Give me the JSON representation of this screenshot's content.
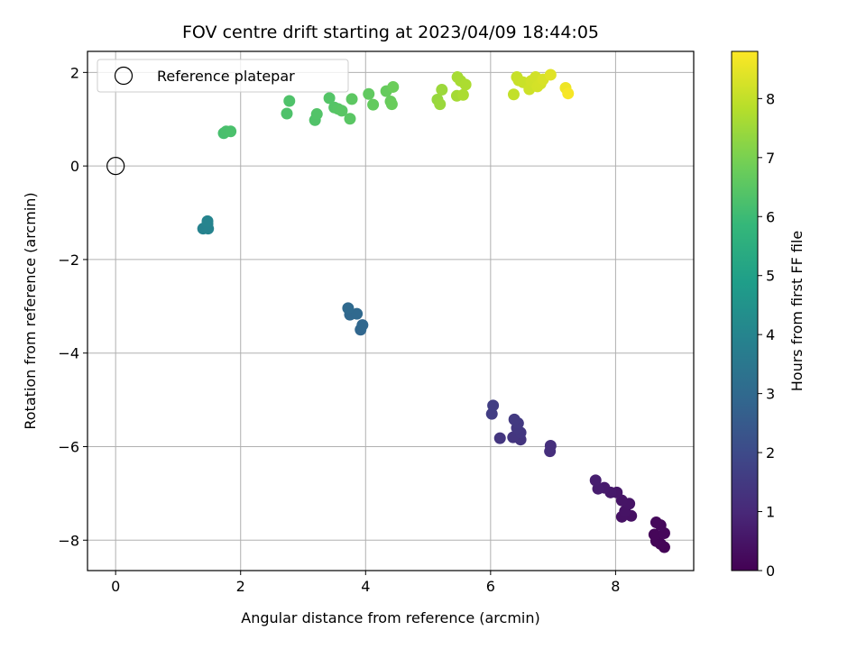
{
  "chart_data": {
    "type": "scatter",
    "title": "FOV centre drift starting at 2023/04/09 18:44:05",
    "xlabel": "Angular distance from reference (arcmin)",
    "ylabel": "Rotation from reference (arcmin)",
    "xlim": [
      -0.45,
      9.25
    ],
    "ylim": [
      -8.65,
      2.45
    ],
    "xticks": [
      0,
      2,
      4,
      6,
      8
    ],
    "yticks": [
      -8,
      -6,
      -4,
      -2,
      0,
      2
    ],
    "grid": true,
    "legend": {
      "position": "top-left",
      "entries": [
        "Reference platepar"
      ]
    },
    "reference_point": {
      "x": 0,
      "y": 0,
      "marker": "open-circle"
    },
    "colorbar": {
      "label": "Hours from first FF file",
      "min": 0,
      "max": 8.8,
      "ticks": [
        0,
        1,
        2,
        3,
        4,
        5,
        6,
        7,
        8
      ],
      "colormap": "viridis",
      "colormap_stops": [
        "#440154",
        "#482878",
        "#3e4989",
        "#31688e",
        "#26828e",
        "#1f9e89",
        "#35b779",
        "#6ece58",
        "#b5de2b",
        "#fde725"
      ]
    },
    "points": [
      {
        "x": 8.78,
        "y": -8.15,
        "t": 0.05
      },
      {
        "x": 8.72,
        "y": -8.08,
        "t": 0.08
      },
      {
        "x": 8.65,
        "y": -8.02,
        "t": 0.1
      },
      {
        "x": 8.62,
        "y": -7.88,
        "t": 0.13
      },
      {
        "x": 8.78,
        "y": -7.85,
        "t": 0.15
      },
      {
        "x": 8.72,
        "y": -7.68,
        "t": 0.18
      },
      {
        "x": 8.65,
        "y": -7.62,
        "t": 0.2
      },
      {
        "x": 8.25,
        "y": -7.48,
        "t": 0.4
      },
      {
        "x": 8.1,
        "y": -7.5,
        "t": 0.43
      },
      {
        "x": 8.15,
        "y": -7.38,
        "t": 0.45
      },
      {
        "x": 8.22,
        "y": -7.22,
        "t": 0.48
      },
      {
        "x": 8.1,
        "y": -7.15,
        "t": 0.5
      },
      {
        "x": 8.02,
        "y": -6.98,
        "t": 0.55
      },
      {
        "x": 7.92,
        "y": -6.98,
        "t": 0.6
      },
      {
        "x": 7.82,
        "y": -6.88,
        "t": 0.65
      },
      {
        "x": 7.72,
        "y": -6.9,
        "t": 0.7
      },
      {
        "x": 7.68,
        "y": -6.72,
        "t": 0.72
      },
      {
        "x": 6.95,
        "y": -6.1,
        "t": 1.2
      },
      {
        "x": 6.96,
        "y": -5.98,
        "t": 1.22
      },
      {
        "x": 6.48,
        "y": -5.85,
        "t": 1.35
      },
      {
        "x": 6.36,
        "y": -5.8,
        "t": 1.38
      },
      {
        "x": 6.15,
        "y": -5.82,
        "t": 1.4
      },
      {
        "x": 6.48,
        "y": -5.7,
        "t": 1.42
      },
      {
        "x": 6.42,
        "y": -5.6,
        "t": 1.45
      },
      {
        "x": 6.44,
        "y": -5.5,
        "t": 1.48
      },
      {
        "x": 6.38,
        "y": -5.42,
        "t": 1.5
      },
      {
        "x": 6.02,
        "y": -5.3,
        "t": 1.6
      },
      {
        "x": 6.04,
        "y": -5.12,
        "t": 1.62
      },
      {
        "x": 3.92,
        "y": -3.5,
        "t": 2.9
      },
      {
        "x": 3.95,
        "y": -3.4,
        "t": 2.93
      },
      {
        "x": 3.75,
        "y": -3.18,
        "t": 2.95
      },
      {
        "x": 3.86,
        "y": -3.16,
        "t": 2.98
      },
      {
        "x": 3.72,
        "y": -3.04,
        "t": 3.0
      },
      {
        "x": 1.4,
        "y": -1.34,
        "t": 3.9
      },
      {
        "x": 1.48,
        "y": -1.34,
        "t": 3.93
      },
      {
        "x": 1.47,
        "y": -1.24,
        "t": 3.95
      },
      {
        "x": 1.47,
        "y": -1.18,
        "t": 3.98
      },
      {
        "x": 1.73,
        "y": 0.7,
        "t": 6.2
      },
      {
        "x": 1.77,
        "y": 0.74,
        "t": 6.22
      },
      {
        "x": 1.84,
        "y": 0.74,
        "t": 6.25
      },
      {
        "x": 2.74,
        "y": 1.12,
        "t": 6.3
      },
      {
        "x": 2.78,
        "y": 1.39,
        "t": 6.32
      },
      {
        "x": 3.19,
        "y": 0.98,
        "t": 6.35
      },
      {
        "x": 3.22,
        "y": 1.11,
        "t": 6.38
      },
      {
        "x": 3.42,
        "y": 1.45,
        "t": 6.4
      },
      {
        "x": 3.5,
        "y": 1.25,
        "t": 6.42
      },
      {
        "x": 3.56,
        "y": 1.22,
        "t": 6.45
      },
      {
        "x": 3.62,
        "y": 1.18,
        "t": 6.48
      },
      {
        "x": 3.75,
        "y": 1.01,
        "t": 6.5
      },
      {
        "x": 3.78,
        "y": 1.43,
        "t": 6.55
      },
      {
        "x": 4.05,
        "y": 1.54,
        "t": 6.62
      },
      {
        "x": 4.12,
        "y": 1.31,
        "t": 6.66
      },
      {
        "x": 4.33,
        "y": 1.6,
        "t": 6.7
      },
      {
        "x": 4.4,
        "y": 1.38,
        "t": 6.73
      },
      {
        "x": 4.42,
        "y": 1.32,
        "t": 6.76
      },
      {
        "x": 4.44,
        "y": 1.69,
        "t": 6.8
      },
      {
        "x": 5.15,
        "y": 1.42,
        "t": 7.4
      },
      {
        "x": 5.19,
        "y": 1.32,
        "t": 7.45
      },
      {
        "x": 5.22,
        "y": 1.63,
        "t": 7.48
      },
      {
        "x": 5.46,
        "y": 1.5,
        "t": 7.6
      },
      {
        "x": 5.47,
        "y": 1.9,
        "t": 7.62
      },
      {
        "x": 5.52,
        "y": 1.82,
        "t": 7.65
      },
      {
        "x": 5.56,
        "y": 1.52,
        "t": 7.68
      },
      {
        "x": 5.6,
        "y": 1.74,
        "t": 7.7
      },
      {
        "x": 6.37,
        "y": 1.53,
        "t": 8.0
      },
      {
        "x": 6.42,
        "y": 1.9,
        "t": 8.05
      },
      {
        "x": 6.45,
        "y": 1.83,
        "t": 8.08
      },
      {
        "x": 6.52,
        "y": 1.79,
        "t": 8.1
      },
      {
        "x": 6.62,
        "y": 1.64,
        "t": 8.15
      },
      {
        "x": 6.65,
        "y": 1.82,
        "t": 8.18
      },
      {
        "x": 6.72,
        "y": 1.9,
        "t": 8.2
      },
      {
        "x": 6.75,
        "y": 1.7,
        "t": 8.23
      },
      {
        "x": 6.8,
        "y": 1.76,
        "t": 8.25
      },
      {
        "x": 6.84,
        "y": 1.85,
        "t": 8.3
      },
      {
        "x": 6.96,
        "y": 1.95,
        "t": 8.4
      },
      {
        "x": 7.2,
        "y": 1.67,
        "t": 8.6
      },
      {
        "x": 7.24,
        "y": 1.55,
        "t": 8.7
      }
    ]
  }
}
